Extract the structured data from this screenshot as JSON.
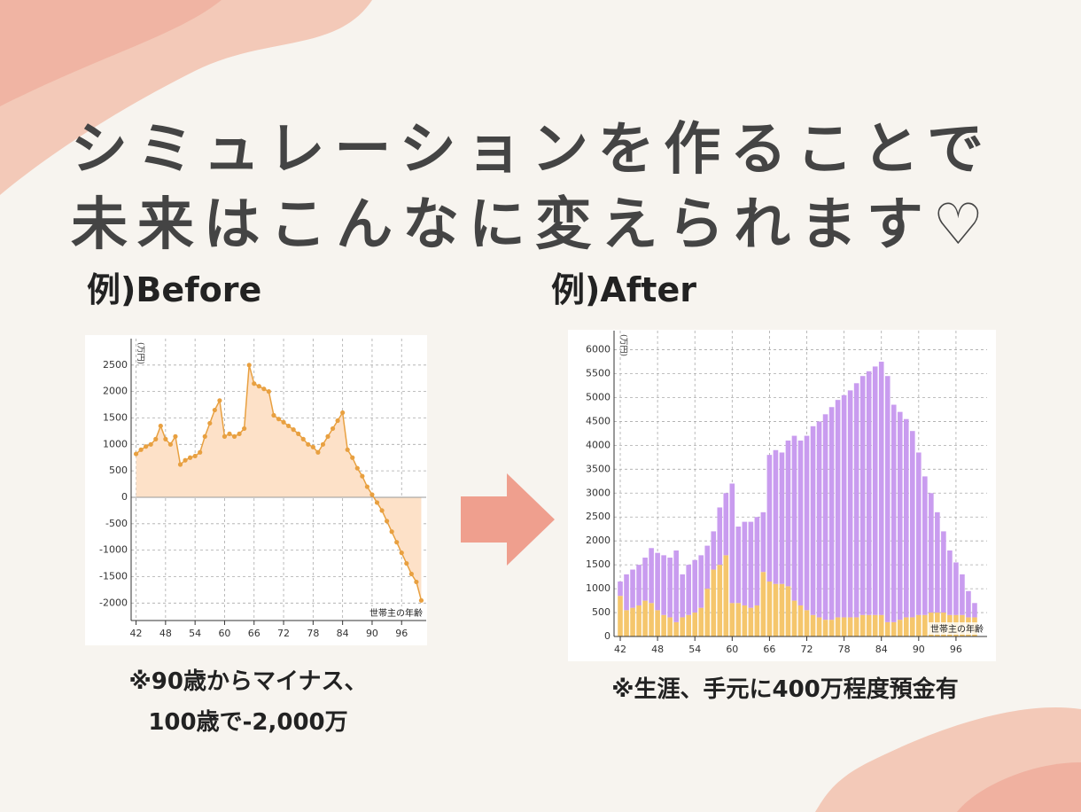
{
  "heading": [
    "シミュレーションを作ることで",
    "未来はこんなに変えられます♡"
  ],
  "chart_data": [
    {
      "type": "area",
      "title": "例)Before",
      "y_label": "(万円)",
      "x_label": "世帯主の年齢",
      "annotations": [
        "※90歳からマイナス、",
        "100歳で-2,000万"
      ],
      "x": [
        42,
        43,
        44,
        45,
        46,
        47,
        48,
        49,
        50,
        51,
        52,
        53,
        54,
        55,
        56,
        57,
        58,
        59,
        60,
        61,
        62,
        63,
        64,
        65,
        66,
        67,
        68,
        69,
        70,
        71,
        72,
        73,
        74,
        75,
        76,
        77,
        78,
        79,
        80,
        81,
        82,
        83,
        84,
        85,
        86,
        87,
        88,
        89,
        90,
        91,
        92,
        93,
        94,
        95,
        96,
        97,
        98,
        99,
        100
      ],
      "values": [
        820,
        900,
        960,
        1000,
        1100,
        1350,
        1100,
        1000,
        1150,
        620,
        700,
        750,
        780,
        850,
        1150,
        1400,
        1650,
        1830,
        1150,
        1200,
        1150,
        1200,
        1300,
        2500,
        2150,
        2100,
        2050,
        2000,
        1550,
        1480,
        1420,
        1350,
        1280,
        1200,
        1100,
        1000,
        950,
        850,
        1000,
        1150,
        1300,
        1450,
        1600,
        900,
        750,
        550,
        400,
        200,
        50,
        -100,
        -250,
        -450,
        -650,
        -850,
        -1050,
        -1250,
        -1450,
        -1600,
        -1950
      ],
      "color": "#e8a040",
      "fill": "#fde1c8",
      "xlim": [
        41,
        101
      ],
      "xticks": [
        42,
        48,
        54,
        60,
        66,
        72,
        78,
        84,
        90,
        96
      ],
      "ylim": [
        -2330,
        3000
      ],
      "yticks": [
        -2000,
        -1500,
        -1000,
        -500,
        0,
        500,
        1000,
        1500,
        2000,
        2500
      ],
      "grid": true
    },
    {
      "type": "stacked_bar",
      "title": "例)After",
      "y_label": "(万円)",
      "x_label": "世帯主の年齢",
      "annotations": [
        "※生涯、手元に400万程度預金有"
      ],
      "x": [
        42,
        43,
        44,
        45,
        46,
        47,
        48,
        49,
        50,
        51,
        52,
        53,
        54,
        55,
        56,
        57,
        58,
        59,
        60,
        61,
        62,
        63,
        64,
        65,
        66,
        67,
        68,
        69,
        70,
        71,
        72,
        73,
        74,
        75,
        76,
        77,
        78,
        79,
        80,
        81,
        82,
        83,
        84,
        85,
        86,
        87,
        88,
        89,
        90,
        91,
        92,
        93,
        94,
        95,
        96,
        97,
        98,
        99
      ],
      "series": [
        {
          "color": "#f5c66c",
          "values": [
            850,
            550,
            600,
            650,
            750,
            700,
            550,
            450,
            400,
            300,
            400,
            450,
            500,
            600,
            1000,
            1400,
            1500,
            1700,
            700,
            700,
            650,
            600,
            650,
            1350,
            1150,
            1100,
            1100,
            1050,
            750,
            650,
            550,
            450,
            400,
            350,
            350,
            400,
            400,
            400,
            400,
            450,
            450,
            450,
            450,
            300,
            300,
            350,
            400,
            400,
            450,
            450,
            500,
            500,
            500,
            450,
            450,
            450,
            400,
            400
          ]
        },
        {
          "color": "#c99cef",
          "values": [
            300,
            750,
            800,
            850,
            900,
            1150,
            1200,
            1250,
            1250,
            1500,
            900,
            1050,
            1100,
            1100,
            900,
            800,
            1200,
            1300,
            2500,
            1600,
            1750,
            1800,
            1850,
            1250,
            2650,
            2800,
            2750,
            3050,
            3450,
            3450,
            3650,
            3950,
            4100,
            4300,
            4450,
            4550,
            4650,
            4750,
            4900,
            5000,
            5100,
            5200,
            5300,
            5150,
            4550,
            4350,
            4150,
            3900,
            3400,
            2900,
            2500,
            2100,
            1700,
            1350,
            1100,
            850,
            550,
            300
          ]
        }
      ],
      "xlim": [
        41,
        101
      ],
      "xticks": [
        42,
        48,
        54,
        60,
        66,
        72,
        78,
        84,
        90,
        96
      ],
      "ylim": [
        0,
        6400
      ],
      "yticks": [
        0,
        500,
        1000,
        1500,
        2000,
        2500,
        3000,
        3500,
        4000,
        4500,
        5000,
        5500,
        6000
      ],
      "grid": true
    }
  ]
}
